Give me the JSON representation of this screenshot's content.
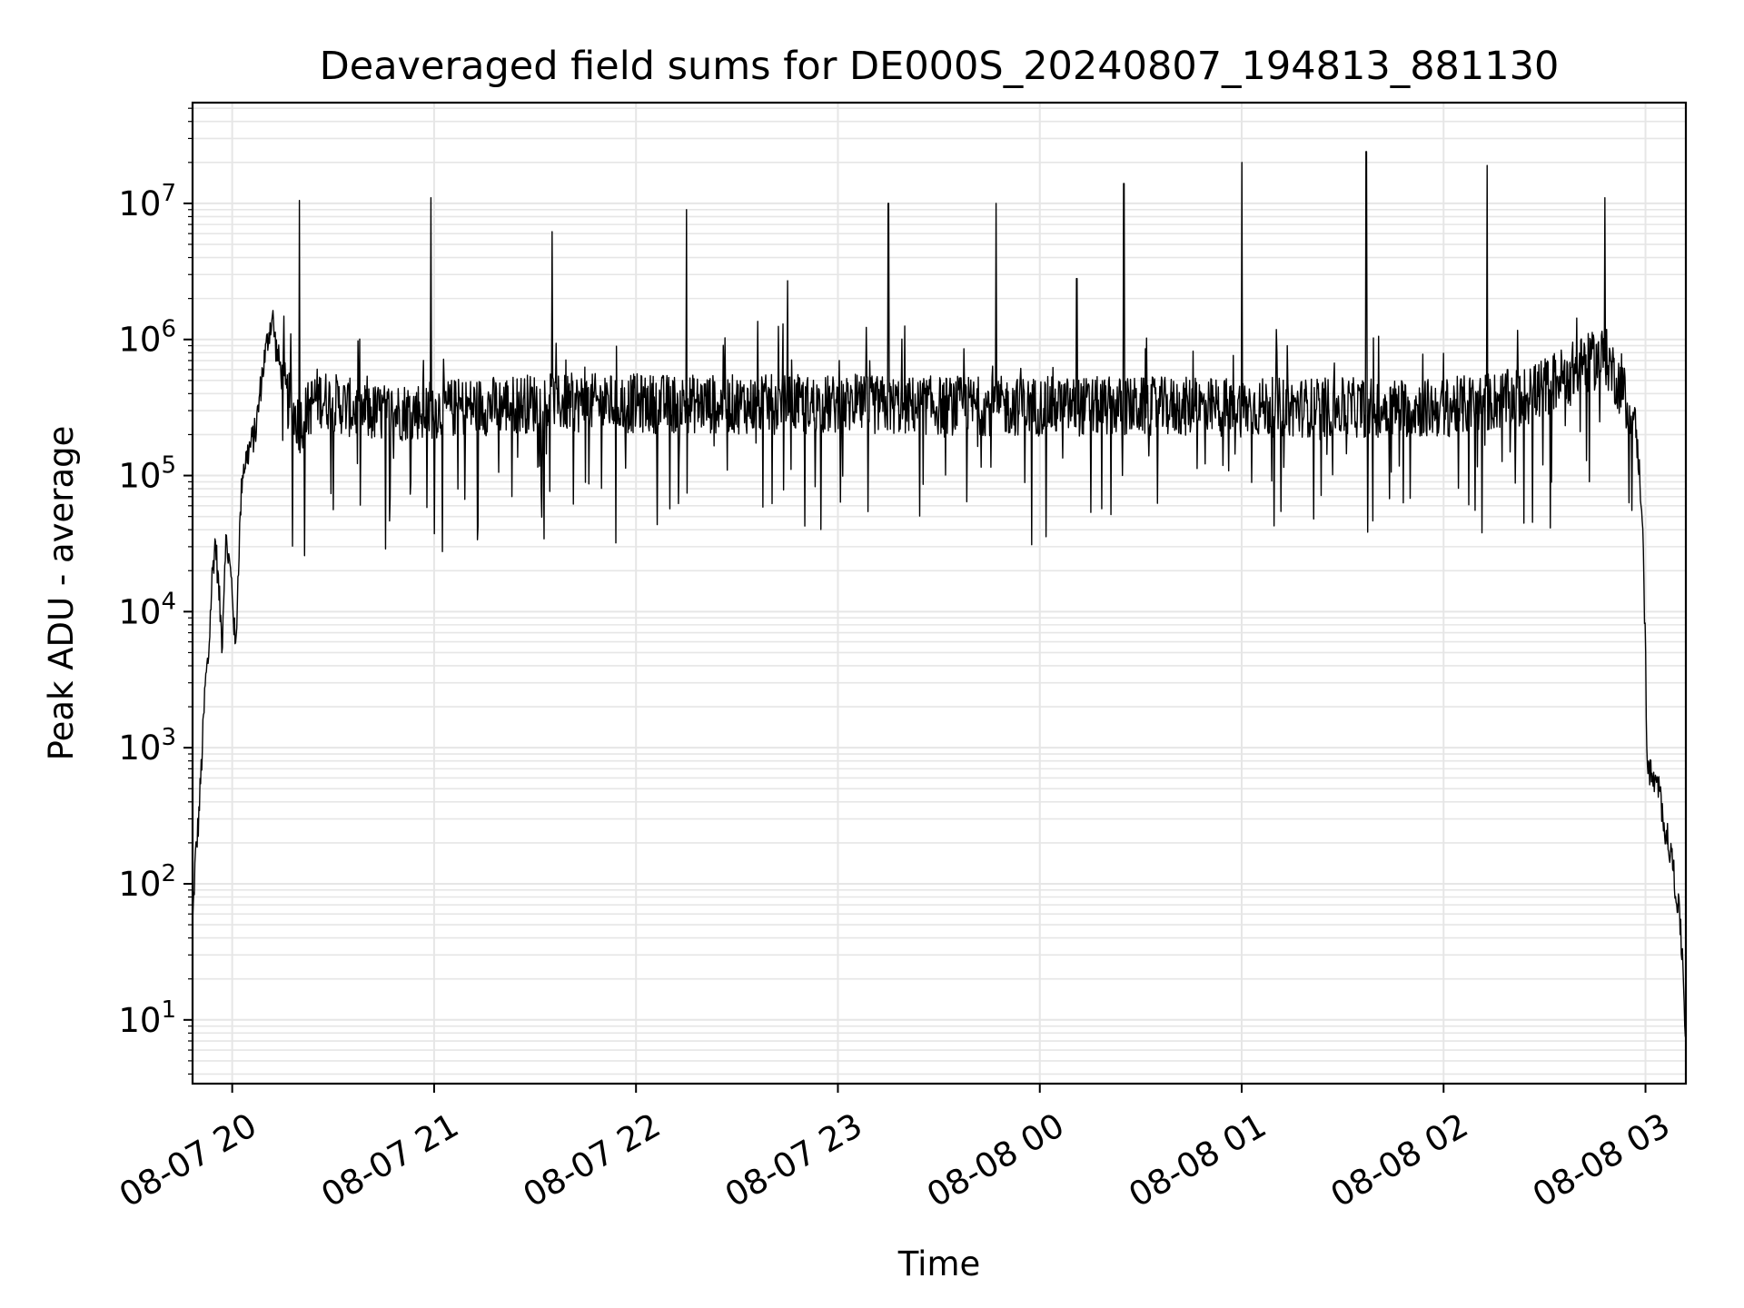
{
  "chart_data": {
    "type": "line",
    "title": "Deaveraged field sums for DE000S_20240807_194813_881130",
    "xlabel": "Time",
    "ylabel": "Peak ADU - average",
    "yscale": "log",
    "grid": true,
    "line_color": "#000000",
    "grid_color": "#e6e6e6",
    "x_range": [
      "2024-08-07 19:48:13",
      "2024-08-08 03:12:00"
    ],
    "y_range": [
      3.4,
      55000000
    ],
    "x_ticks": [
      {
        "value": "2024-08-07 20:00",
        "label": "08-07 20"
      },
      {
        "value": "2024-08-07 21:00",
        "label": "08-07 21"
      },
      {
        "value": "2024-08-07 22:00",
        "label": "08-07 22"
      },
      {
        "value": "2024-08-07 23:00",
        "label": "08-07 23"
      },
      {
        "value": "2024-08-08 00:00",
        "label": "08-08 00"
      },
      {
        "value": "2024-08-08 01:00",
        "label": "08-08 01"
      },
      {
        "value": "2024-08-08 02:00",
        "label": "08-08 02"
      },
      {
        "value": "2024-08-08 03:00",
        "label": "08-08 03"
      }
    ],
    "y_ticks": [
      {
        "value": 10,
        "base": "10",
        "exp": "1"
      },
      {
        "value": 100,
        "base": "10",
        "exp": "2"
      },
      {
        "value": 1000,
        "base": "10",
        "exp": "3"
      },
      {
        "value": 10000,
        "base": "10",
        "exp": "4"
      },
      {
        "value": 100000,
        "base": "10",
        "exp": "5"
      },
      {
        "value": 1000000,
        "base": "10",
        "exp": "6"
      },
      {
        "value": 10000000,
        "base": "10",
        "exp": "7"
      }
    ],
    "baseline_profile": [
      {
        "t": "2024-08-07 19:48:13",
        "y": 50
      },
      {
        "t": "2024-08-07 19:49",
        "y": 150
      },
      {
        "t": "2024-08-07 19:50",
        "y": 300
      },
      {
        "t": "2024-08-07 19:51",
        "y": 900
      },
      {
        "t": "2024-08-07 19:52",
        "y": 3000
      },
      {
        "t": "2024-08-07 19:53",
        "y": 5000
      },
      {
        "t": "2024-08-07 19:54",
        "y": 18000
      },
      {
        "t": "2024-08-07 19:55",
        "y": 35000
      },
      {
        "t": "2024-08-07 19:56",
        "y": 15000
      },
      {
        "t": "2024-08-07 19:57",
        "y": 6000
      },
      {
        "t": "2024-08-07 19:58",
        "y": 35000
      },
      {
        "t": "2024-08-07 19:59",
        "y": 25000
      },
      {
        "t": "2024-08-07 20:00",
        "y": 15000
      },
      {
        "t": "2024-08-07 20:01",
        "y": 5000
      },
      {
        "t": "2024-08-07 20:02",
        "y": 30000
      },
      {
        "t": "2024-08-07 20:03",
        "y": 110000
      },
      {
        "t": "2024-08-07 20:05",
        "y": 160000
      },
      {
        "t": "2024-08-07 20:07",
        "y": 220000
      },
      {
        "t": "2024-08-07 20:09",
        "y": 600000
      },
      {
        "t": "2024-08-07 20:11",
        "y": 1200000
      },
      {
        "t": "2024-08-07 20:12",
        "y": 1500000
      },
      {
        "t": "2024-08-07 20:13",
        "y": 900000
      },
      {
        "t": "2024-08-07 20:16",
        "y": 400000
      },
      {
        "t": "2024-08-07 20:20",
        "y": 250000
      },
      {
        "t": "2024-08-07 20:25",
        "y": 400000
      },
      {
        "t": "2024-08-07 20:40",
        "y": 300000
      },
      {
        "t": "2024-08-07 21:30",
        "y": 360000
      },
      {
        "t": "2024-08-08 00:00",
        "y": 340000
      },
      {
        "t": "2024-08-08 02:00",
        "y": 330000
      },
      {
        "t": "2024-08-08 02:25",
        "y": 400000
      },
      {
        "t": "2024-08-08 02:40",
        "y": 650000
      },
      {
        "t": "2024-08-08 02:48",
        "y": 800000
      },
      {
        "t": "2024-08-08 02:53",
        "y": 450000
      },
      {
        "t": "2024-08-08 02:57",
        "y": 250000
      },
      {
        "t": "2024-08-08 02:59",
        "y": 60000
      },
      {
        "t": "2024-08-08 03:00",
        "y": 5000
      },
      {
        "t": "2024-08-08 03:00:30",
        "y": 800
      },
      {
        "t": "2024-08-08 03:02",
        "y": 600
      },
      {
        "t": "2024-08-08 03:04",
        "y": 500
      },
      {
        "t": "2024-08-08 03:06",
        "y": 250
      },
      {
        "t": "2024-08-08 03:08",
        "y": 150
      },
      {
        "t": "2024-08-08 03:10",
        "y": 60
      },
      {
        "t": "2024-08-08 03:11",
        "y": 30
      },
      {
        "t": "2024-08-08 03:12",
        "y": 7
      }
    ],
    "spikes": [
      {
        "t": "2024-08-07 20:20:00",
        "y": 10500000
      },
      {
        "t": "2024-08-07 20:59:00",
        "y": 11000000
      },
      {
        "t": "2024-08-07 21:35:00",
        "y": 6200000
      },
      {
        "t": "2024-08-07 22:15:00",
        "y": 9000000
      },
      {
        "t": "2024-08-07 22:45:00",
        "y": 2700000
      },
      {
        "t": "2024-08-07 23:15:00",
        "y": 10000000
      },
      {
        "t": "2024-08-07 23:47:00",
        "y": 10000000
      },
      {
        "t": "2024-08-08 00:11:00",
        "y": 2800000
      },
      {
        "t": "2024-08-08 00:25:00",
        "y": 14000000
      },
      {
        "t": "2024-08-08 01:00:00",
        "y": 20000000
      },
      {
        "t": "2024-08-08 01:37:00",
        "y": 24000000
      },
      {
        "t": "2024-08-08 02:13:00",
        "y": 19000000
      },
      {
        "t": "2024-08-08 02:48:00",
        "y": 11000000
      }
    ]
  }
}
